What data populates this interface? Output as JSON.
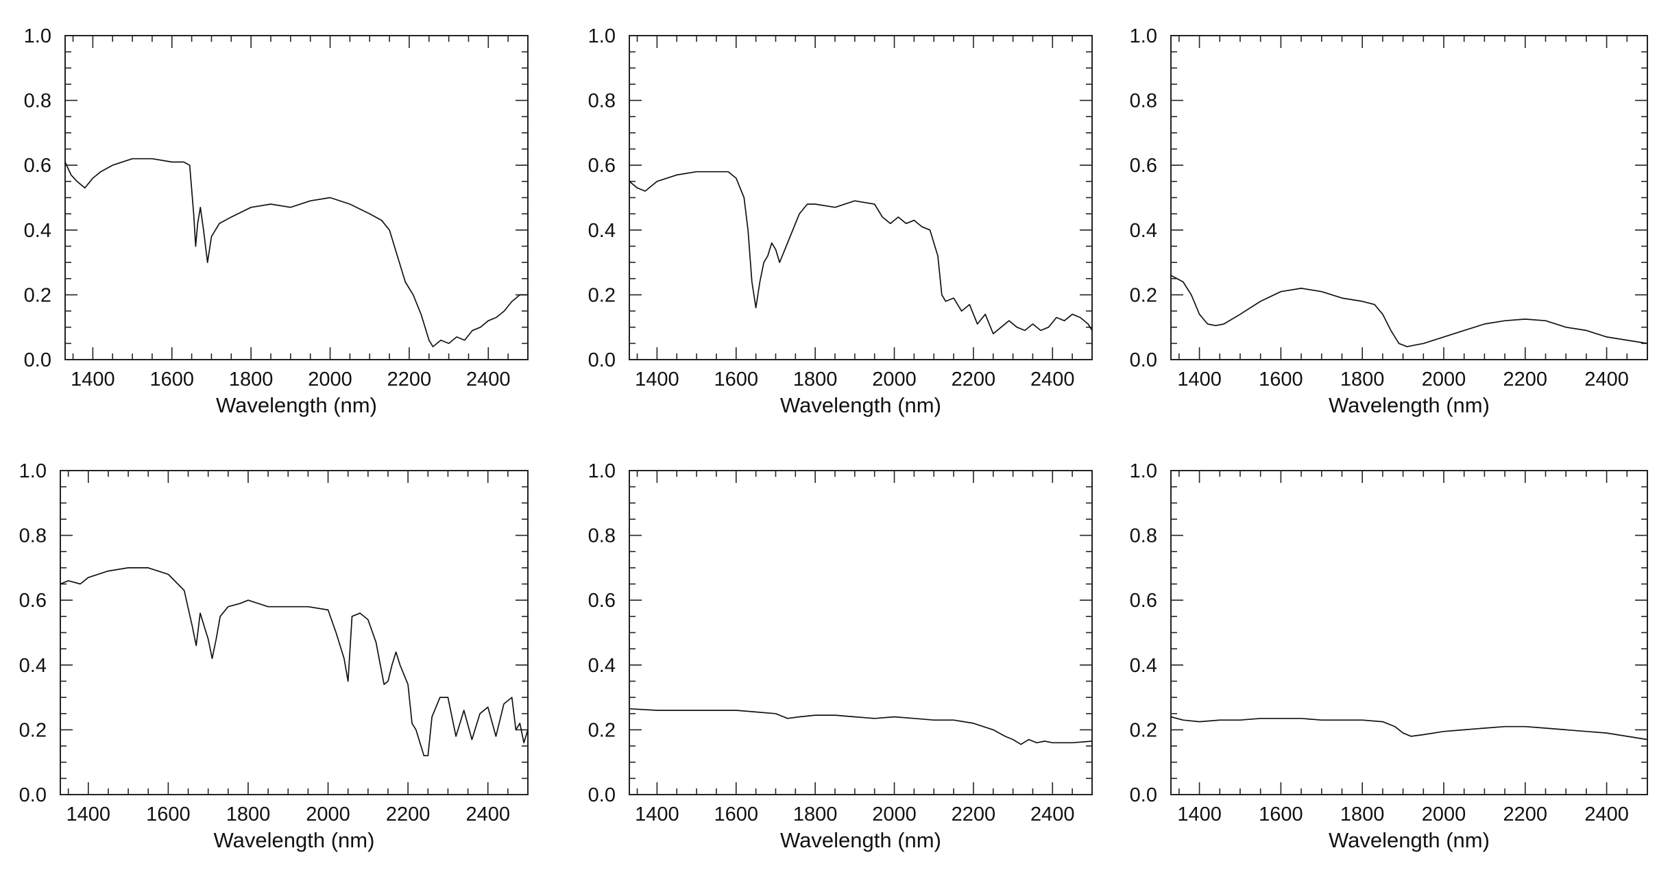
{
  "figure": {
    "grid": false,
    "panels_layout": "2 rows x 3 columns"
  },
  "chart_data": [
    {
      "type": "line",
      "xlabel": "Wavelength (nm)",
      "ylabel": "",
      "xlim": [
        1330,
        2500
      ],
      "ylim": [
        0,
        1.0
      ],
      "xticks": [
        "1400",
        "1600",
        "1800",
        "2000",
        "2200",
        "2400"
      ],
      "yticks": [
        "0.0",
        "0.2",
        "0.4",
        "0.6",
        "0.8",
        "1.0"
      ],
      "series": [
        {
          "x": [
            1330,
            1345,
            1360,
            1380,
            1400,
            1420,
            1450,
            1500,
            1550,
            1600,
            1630,
            1645,
            1655,
            1660,
            1665,
            1672,
            1680,
            1690,
            1700,
            1720,
            1750,
            1800,
            1850,
            1900,
            1950,
            2000,
            2050,
            2100,
            2130,
            2150,
            2170,
            2190,
            2210,
            2230,
            2250,
            2260,
            2280,
            2300,
            2320,
            2340,
            2360,
            2380,
            2400,
            2420,
            2440,
            2460,
            2480,
            2500
          ],
          "y": [
            0.61,
            0.57,
            0.55,
            0.53,
            0.56,
            0.58,
            0.6,
            0.62,
            0.62,
            0.61,
            0.61,
            0.6,
            0.45,
            0.35,
            0.42,
            0.47,
            0.4,
            0.3,
            0.38,
            0.42,
            0.44,
            0.47,
            0.48,
            0.47,
            0.49,
            0.5,
            0.48,
            0.45,
            0.43,
            0.4,
            0.32,
            0.24,
            0.2,
            0.14,
            0.06,
            0.04,
            0.06,
            0.05,
            0.07,
            0.06,
            0.09,
            0.1,
            0.12,
            0.13,
            0.15,
            0.18,
            0.2,
            0.2
          ]
        }
      ]
    },
    {
      "type": "line",
      "xlabel": "Wavelength (nm)",
      "ylabel": "",
      "xlim": [
        1330,
        2500
      ],
      "ylim": [
        0,
        1.0
      ],
      "xticks": [
        "1400",
        "1600",
        "1800",
        "2000",
        "2200",
        "2400"
      ],
      "yticks": [
        "0.0",
        "0.2",
        "0.4",
        "0.6",
        "0.8",
        "1.0"
      ],
      "series": [
        {
          "x": [
            1330,
            1350,
            1370,
            1400,
            1450,
            1500,
            1550,
            1580,
            1600,
            1620,
            1630,
            1640,
            1650,
            1660,
            1670,
            1680,
            1690,
            1700,
            1710,
            1720,
            1740,
            1760,
            1780,
            1800,
            1850,
            1900,
            1950,
            1970,
            1990,
            2010,
            2030,
            2050,
            2070,
            2090,
            2110,
            2120,
            2130,
            2150,
            2170,
            2190,
            2210,
            2230,
            2250,
            2270,
            2290,
            2310,
            2330,
            2350,
            2370,
            2390,
            2410,
            2430,
            2450,
            2470,
            2490,
            2500
          ],
          "y": [
            0.55,
            0.53,
            0.52,
            0.55,
            0.57,
            0.58,
            0.58,
            0.58,
            0.56,
            0.5,
            0.4,
            0.24,
            0.16,
            0.24,
            0.3,
            0.32,
            0.36,
            0.34,
            0.3,
            0.33,
            0.39,
            0.45,
            0.48,
            0.48,
            0.47,
            0.49,
            0.48,
            0.44,
            0.42,
            0.44,
            0.42,
            0.43,
            0.41,
            0.4,
            0.32,
            0.2,
            0.18,
            0.19,
            0.15,
            0.17,
            0.11,
            0.14,
            0.08,
            0.1,
            0.12,
            0.1,
            0.09,
            0.11,
            0.09,
            0.1,
            0.13,
            0.12,
            0.14,
            0.13,
            0.11,
            0.09
          ]
        }
      ]
    },
    {
      "type": "line",
      "xlabel": "Wavelength (nm)",
      "ylabel": "",
      "xlim": [
        1330,
        2500
      ],
      "ylim": [
        0,
        1.0
      ],
      "xticks": [
        "1400",
        "1600",
        "1800",
        "2000",
        "2200",
        "2400"
      ],
      "yticks": [
        "0.0",
        "0.2",
        "0.4",
        "0.6",
        "0.8",
        "1.0"
      ],
      "series": [
        {
          "x": [
            1330,
            1360,
            1380,
            1400,
            1420,
            1440,
            1460,
            1500,
            1550,
            1600,
            1650,
            1700,
            1750,
            1800,
            1830,
            1850,
            1870,
            1890,
            1910,
            1930,
            1950,
            2000,
            2050,
            2100,
            2150,
            2200,
            2250,
            2300,
            2350,
            2400,
            2450,
            2500
          ],
          "y": [
            0.26,
            0.24,
            0.2,
            0.14,
            0.11,
            0.105,
            0.11,
            0.14,
            0.18,
            0.21,
            0.22,
            0.21,
            0.19,
            0.18,
            0.17,
            0.14,
            0.09,
            0.05,
            0.04,
            0.045,
            0.05,
            0.07,
            0.09,
            0.11,
            0.12,
            0.125,
            0.12,
            0.1,
            0.09,
            0.07,
            0.06,
            0.05
          ]
        }
      ]
    },
    {
      "type": "line",
      "xlabel": "Wavelength (nm)",
      "ylabel": "",
      "xlim": [
        1330,
        2500
      ],
      "ylim": [
        0,
        1.0
      ],
      "xticks": [
        "1400",
        "1600",
        "1800",
        "2000",
        "2200",
        "2400"
      ],
      "yticks": [
        "0.0",
        "0.2",
        "0.4",
        "0.6",
        "0.8",
        "1.0"
      ],
      "series": [
        {
          "x": [
            1330,
            1350,
            1380,
            1400,
            1450,
            1500,
            1550,
            1600,
            1640,
            1660,
            1670,
            1680,
            1690,
            1700,
            1710,
            1720,
            1730,
            1750,
            1780,
            1800,
            1850,
            1900,
            1950,
            2000,
            2020,
            2040,
            2050,
            2060,
            2080,
            2100,
            2120,
            2140,
            2150,
            2160,
            2170,
            2180,
            2200,
            2210,
            2220,
            2240,
            2250,
            2260,
            2280,
            2300,
            2320,
            2340,
            2360,
            2380,
            2400,
            2420,
            2440,
            2460,
            2470,
            2480,
            2490,
            2500
          ],
          "y": [
            0.65,
            0.66,
            0.65,
            0.67,
            0.69,
            0.7,
            0.7,
            0.68,
            0.63,
            0.52,
            0.46,
            0.56,
            0.52,
            0.48,
            0.42,
            0.48,
            0.55,
            0.58,
            0.59,
            0.6,
            0.58,
            0.58,
            0.58,
            0.57,
            0.5,
            0.42,
            0.35,
            0.55,
            0.56,
            0.54,
            0.47,
            0.34,
            0.35,
            0.4,
            0.44,
            0.4,
            0.34,
            0.22,
            0.2,
            0.12,
            0.12,
            0.24,
            0.3,
            0.3,
            0.18,
            0.26,
            0.17,
            0.25,
            0.27,
            0.18,
            0.28,
            0.3,
            0.2,
            0.22,
            0.16,
            0.2
          ]
        }
      ]
    },
    {
      "type": "line",
      "xlabel": "Wavelength (nm)",
      "ylabel": "",
      "xlim": [
        1330,
        2500
      ],
      "ylim": [
        0,
        1.0
      ],
      "xticks": [
        "1400",
        "1600",
        "1800",
        "2000",
        "2200",
        "2400"
      ],
      "yticks": [
        "0.0",
        "0.2",
        "0.4",
        "0.6",
        "0.8",
        "1.0"
      ],
      "series": [
        {
          "x": [
            1330,
            1400,
            1500,
            1600,
            1650,
            1700,
            1730,
            1760,
            1800,
            1850,
            1900,
            1950,
            2000,
            2050,
            2100,
            2150,
            2200,
            2250,
            2280,
            2300,
            2320,
            2340,
            2360,
            2380,
            2400,
            2450,
            2500
          ],
          "y": [
            0.265,
            0.26,
            0.26,
            0.26,
            0.255,
            0.25,
            0.235,
            0.24,
            0.245,
            0.245,
            0.24,
            0.235,
            0.24,
            0.235,
            0.23,
            0.23,
            0.22,
            0.2,
            0.18,
            0.17,
            0.155,
            0.17,
            0.16,
            0.165,
            0.16,
            0.16,
            0.165
          ]
        }
      ]
    },
    {
      "type": "line",
      "xlabel": "Wavelength (nm)",
      "ylabel": "",
      "xlim": [
        1330,
        2500
      ],
      "ylim": [
        0,
        1.0
      ],
      "xticks": [
        "1400",
        "1600",
        "1800",
        "2000",
        "2200",
        "2400"
      ],
      "yticks": [
        "0.0",
        "0.2",
        "0.4",
        "0.6",
        "0.8",
        "1.0"
      ],
      "series": [
        {
          "x": [
            1330,
            1360,
            1400,
            1450,
            1500,
            1550,
            1600,
            1650,
            1700,
            1750,
            1800,
            1850,
            1880,
            1900,
            1920,
            1950,
            2000,
            2050,
            2100,
            2150,
            2200,
            2250,
            2300,
            2350,
            2400,
            2450,
            2500
          ],
          "y": [
            0.24,
            0.23,
            0.225,
            0.23,
            0.23,
            0.235,
            0.235,
            0.235,
            0.23,
            0.23,
            0.23,
            0.225,
            0.21,
            0.19,
            0.18,
            0.185,
            0.195,
            0.2,
            0.205,
            0.21,
            0.21,
            0.205,
            0.2,
            0.195,
            0.19,
            0.18,
            0.17
          ]
        }
      ]
    }
  ]
}
